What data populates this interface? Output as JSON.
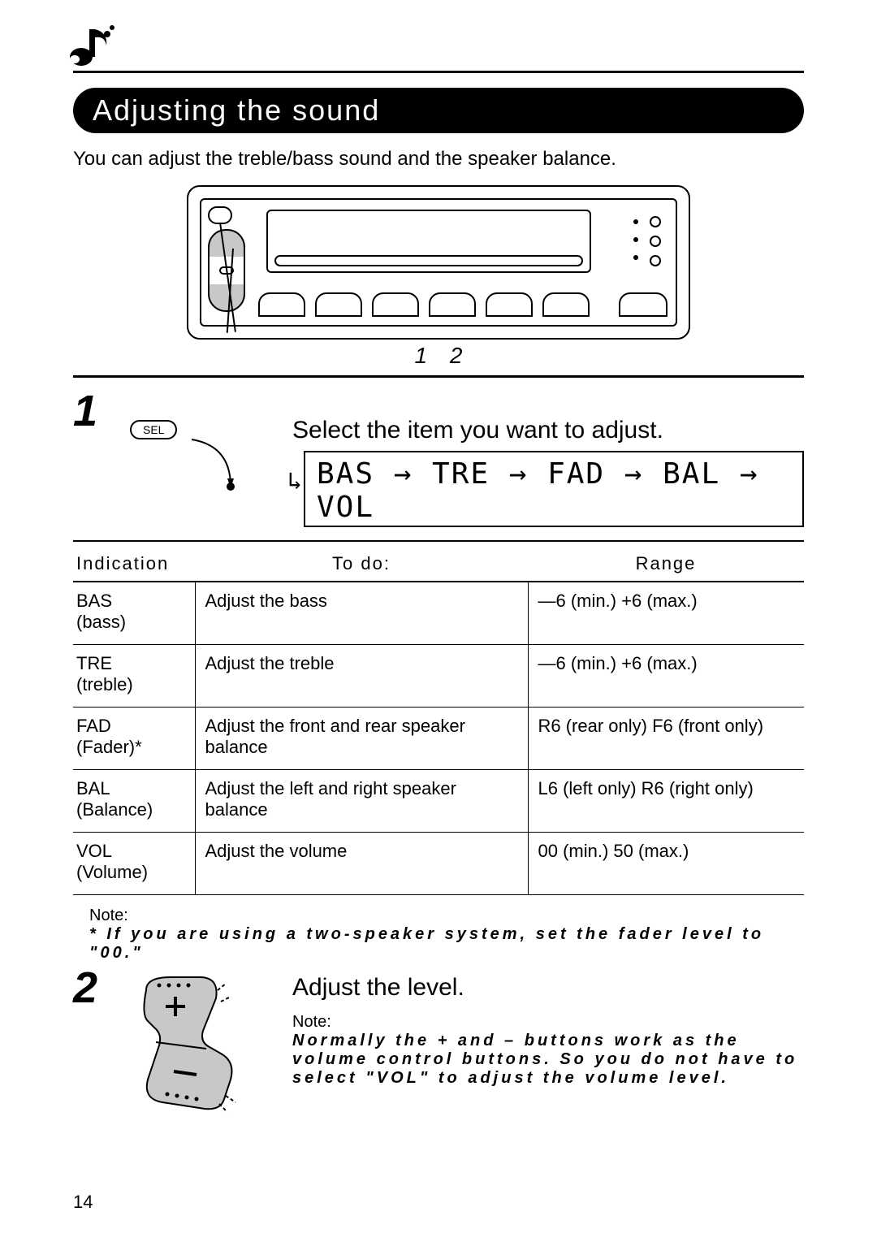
{
  "page": {
    "number": "14",
    "section_title": "Adjusting the sound",
    "intro": "You can adjust the treble/bass sound and the speaker balance."
  },
  "figure": {
    "pointer_1": "1",
    "pointer_2": "2"
  },
  "step1": {
    "number": "1",
    "sel_label": "SEL",
    "instruction": "Select the item you want to adjust.",
    "sequence": "BAS → TRE → FAD → BAL → VOL"
  },
  "table": {
    "headers": {
      "indication": "Indication",
      "todo": "To do:",
      "range": "Range"
    },
    "rows": [
      {
        "code": "BAS",
        "name": "(bass)",
        "todo": "Adjust the bass",
        "range": "—6 (min.)   +6 (max.)"
      },
      {
        "code": "TRE",
        "name": "(treble)",
        "todo": "Adjust the treble",
        "range": "—6 (min.)   +6 (max.)"
      },
      {
        "code": "FAD",
        "name": "(Fader)*",
        "todo": "Adjust the front and rear speaker balance",
        "range": "R6 (rear only)   F6  (front only)"
      },
      {
        "code": "BAL",
        "name": "(Balance)",
        "todo": "Adjust the left and right speaker balance",
        "range": "L6 (left only)   R6 (right only)"
      },
      {
        "code": "VOL",
        "name": "(Volume)",
        "todo": "Adjust the volume",
        "range": "00 (min.)   50  (max.)"
      }
    ]
  },
  "note1": {
    "label": "Note:",
    "text": "* If you are using a two-speaker system, set the fader level to \"00.\""
  },
  "step2": {
    "number": "2",
    "instruction": "Adjust the level.",
    "note_label": "Note:",
    "note_text": "Normally the + and – buttons work as the volume control buttons. So you do not have to select \"VOL\" to adjust the volume level."
  },
  "style": {
    "seg_font": "monospace",
    "colors": {
      "text": "#000000",
      "bg": "#ffffff",
      "shade": "#c8c8c8"
    }
  }
}
